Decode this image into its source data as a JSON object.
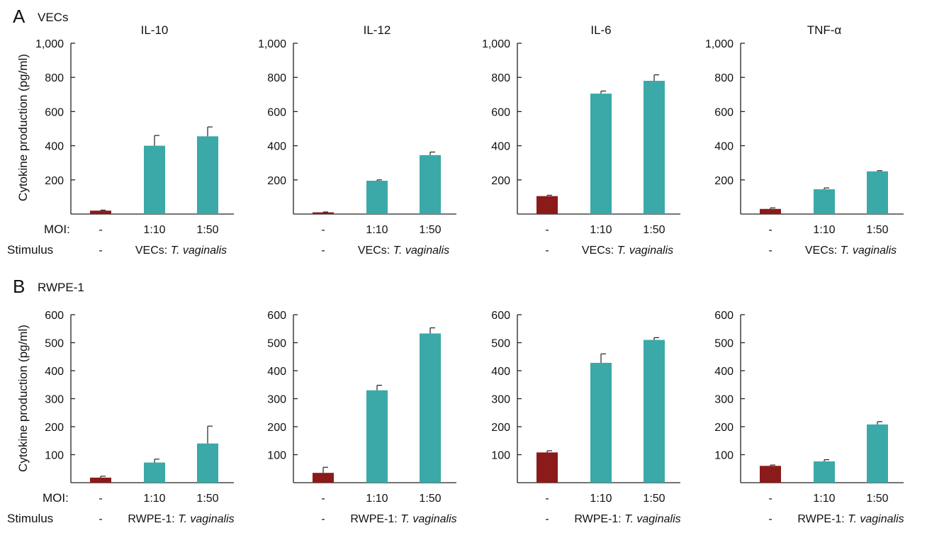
{
  "panel_a": {
    "letter": "A",
    "subtitle": "VECs"
  },
  "panel_b": {
    "letter": "B",
    "subtitle": "RWPE-1"
  },
  "ylabel": "Cytokine production (pg/ml)",
  "row_labels": {
    "moi": "MOI:",
    "stimulus": "Stimulus"
  },
  "colors": {
    "control": "#8b1a1a",
    "treated": "#3aa9a7"
  },
  "chart_data": [
    {
      "type": "bar",
      "panel": "A",
      "title": "IL-10",
      "categories": [
        "-",
        "1:10",
        "1:50"
      ],
      "stimulus": [
        "-",
        "VECs:",
        "T. vaginalis"
      ],
      "values": [
        20,
        400,
        455
      ],
      "errors": [
        3,
        60,
        55
      ],
      "ylim": [
        0,
        1000
      ],
      "yticks": [
        200,
        400,
        600,
        800,
        1000
      ],
      "yticklabels": [
        "200",
        "400",
        "600",
        "800",
        "1,000"
      ],
      "ylabel": "Cytokine production (pg/ml)"
    },
    {
      "type": "bar",
      "panel": "A",
      "title": "IL-12",
      "categories": [
        "-",
        "1:10",
        "1:50"
      ],
      "stimulus": [
        "-",
        "VECs:",
        "T. vaginalis"
      ],
      "values": [
        10,
        195,
        345
      ],
      "errors": [
        2,
        5,
        18
      ],
      "ylim": [
        0,
        1000
      ],
      "yticks": [
        200,
        400,
        600,
        800,
        1000
      ],
      "yticklabels": [
        "200",
        "400",
        "600",
        "800",
        "1,000"
      ],
      "ylabel": ""
    },
    {
      "type": "bar",
      "panel": "A",
      "title": "IL-6",
      "categories": [
        "-",
        "1:10",
        "1:50"
      ],
      "stimulus": [
        "-",
        "VECs:",
        "T. vaginalis"
      ],
      "values": [
        105,
        705,
        780
      ],
      "errors": [
        5,
        15,
        35
      ],
      "ylim": [
        0,
        1000
      ],
      "yticks": [
        200,
        400,
        600,
        800,
        1000
      ],
      "yticklabels": [
        "200",
        "400",
        "600",
        "800",
        "1,000"
      ],
      "ylabel": ""
    },
    {
      "type": "bar",
      "panel": "A",
      "title": "TNF-α",
      "categories": [
        "-",
        "1:10",
        "1:50"
      ],
      "stimulus": [
        "-",
        "VECs:",
        "T. vaginalis"
      ],
      "values": [
        30,
        145,
        250
      ],
      "errors": [
        6,
        8,
        4
      ],
      "ylim": [
        0,
        1000
      ],
      "yticks": [
        200,
        400,
        600,
        800,
        1000
      ],
      "yticklabels": [
        "200",
        "400",
        "600",
        "800",
        "1,000"
      ],
      "ylabel": ""
    },
    {
      "type": "bar",
      "panel": "B",
      "title": "",
      "categories": [
        "-",
        "1:10",
        "1:50"
      ],
      "stimulus": [
        "-",
        "RWPE-1:",
        "T. vaginalis"
      ],
      "values": [
        18,
        72,
        140
      ],
      "errors": [
        5,
        12,
        62
      ],
      "ylim": [
        0,
        600
      ],
      "yticks": [
        100,
        200,
        300,
        400,
        500,
        600
      ],
      "yticklabels": [
        "100",
        "200",
        "300",
        "400",
        "500",
        "600"
      ],
      "ylabel": "Cytokine production (pg/ml)"
    },
    {
      "type": "bar",
      "panel": "B",
      "title": "",
      "categories": [
        "-",
        "1:10",
        "1:50"
      ],
      "stimulus": [
        "-",
        "RWPE-1:",
        "T. vaginalis"
      ],
      "values": [
        35,
        330,
        533
      ],
      "errors": [
        20,
        18,
        20
      ],
      "ylim": [
        0,
        600
      ],
      "yticks": [
        100,
        200,
        300,
        400,
        500,
        600
      ],
      "yticklabels": [
        "100",
        "200",
        "300",
        "400",
        "500",
        "600"
      ],
      "ylabel": ""
    },
    {
      "type": "bar",
      "panel": "B",
      "title": "",
      "categories": [
        "-",
        "1:10",
        "1:50"
      ],
      "stimulus": [
        "-",
        "RWPE-1:",
        "T. vaginalis"
      ],
      "values": [
        108,
        428,
        510
      ],
      "errors": [
        6,
        32,
        8
      ],
      "ylim": [
        0,
        600
      ],
      "yticks": [
        100,
        200,
        300,
        400,
        500,
        600
      ],
      "yticklabels": [
        "100",
        "200",
        "300",
        "400",
        "500",
        "600"
      ],
      "ylabel": ""
    },
    {
      "type": "bar",
      "panel": "B",
      "title": "",
      "categories": [
        "-",
        "1:10",
        "1:50"
      ],
      "stimulus": [
        "-",
        "RWPE-1:",
        "T. vaginalis"
      ],
      "values": [
        60,
        76,
        208
      ],
      "errors": [
        3,
        6,
        10
      ],
      "ylim": [
        0,
        600
      ],
      "yticks": [
        100,
        200,
        300,
        400,
        500,
        600
      ],
      "yticklabels": [
        "100",
        "200",
        "300",
        "400",
        "500",
        "600"
      ],
      "ylabel": ""
    }
  ]
}
